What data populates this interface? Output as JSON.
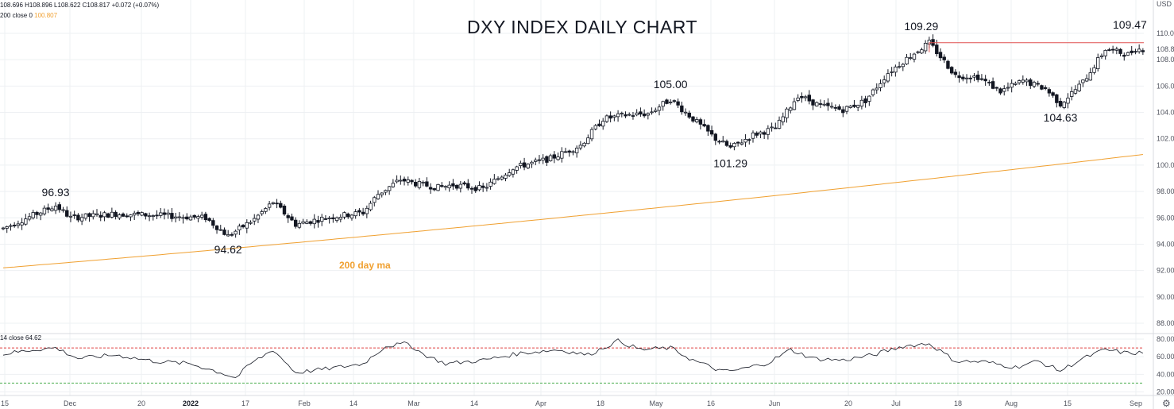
{
  "legend": {
    "ohlc": "108.696 H108.896 L108.622 C108.817 +0.072 (+0.07%)",
    "ma_prefix": "200 close 0",
    "ma_value": "100.807",
    "rsi_prefix": "14 close",
    "rsi_value": "64.62"
  },
  "axis": {
    "currency": "USD"
  },
  "icons": {
    "settings": "gear-icon"
  },
  "colors": {
    "ma": "#f0a030",
    "resistance": "#e05050",
    "rsi_line": "#131722",
    "rsi_upper": "#e04040",
    "rsi_lower": "#4caf50",
    "grid": "#eef0f3"
  },
  "chart_data": [
    {
      "type": "candlestick",
      "title": "DXY INDEX DAILY CHART",
      "ylim": [
        88,
        111
      ],
      "price_ticks": [
        "110.000",
        "108.000",
        "106.000",
        "104.000",
        "102.000",
        "100.000",
        "98.000",
        "96.000",
        "94.000",
        "92.000",
        "90.000",
        "88.000"
      ],
      "last_price_label": "108.8",
      "x_labels": [
        "15",
        "Dec",
        "20",
        "2022",
        "17",
        "Feb",
        "14",
        "Mar",
        "14",
        "Apr",
        "18",
        "May",
        "16",
        "Jun",
        "20",
        "Jul",
        "18",
        "Aug",
        "15",
        "Sep"
      ],
      "anchors": [
        {
          "t": 0,
          "v": 95.2
        },
        {
          "t": 14,
          "v": 96.93
        },
        {
          "t": 18,
          "v": 96.0
        },
        {
          "t": 30,
          "v": 96.3
        },
        {
          "t": 40,
          "v": 96.2
        },
        {
          "t": 54,
          "v": 96.0
        },
        {
          "t": 60,
          "v": 94.62
        },
        {
          "t": 67,
          "v": 95.9
        },
        {
          "t": 72,
          "v": 97.2
        },
        {
          "t": 78,
          "v": 95.5
        },
        {
          "t": 86,
          "v": 96.0
        },
        {
          "t": 96,
          "v": 96.4
        },
        {
          "t": 100,
          "v": 97.8
        },
        {
          "t": 106,
          "v": 98.9
        },
        {
          "t": 110,
          "v": 98.6
        },
        {
          "t": 116,
          "v": 98.3
        },
        {
          "t": 120,
          "v": 98.5
        },
        {
          "t": 128,
          "v": 98.2
        },
        {
          "t": 136,
          "v": 99.8
        },
        {
          "t": 146,
          "v": 100.5
        },
        {
          "t": 154,
          "v": 101.5
        },
        {
          "t": 160,
          "v": 103.5
        },
        {
          "t": 166,
          "v": 103.8
        },
        {
          "t": 172,
          "v": 103.9
        },
        {
          "t": 178,
          "v": 105.0
        },
        {
          "t": 184,
          "v": 103.5
        },
        {
          "t": 190,
          "v": 102.0
        },
        {
          "t": 194,
          "v": 101.29
        },
        {
          "t": 200,
          "v": 102.3
        },
        {
          "t": 206,
          "v": 102.8
        },
        {
          "t": 212,
          "v": 105.3
        },
        {
          "t": 218,
          "v": 104.5
        },
        {
          "t": 224,
          "v": 104.2
        },
        {
          "t": 230,
          "v": 104.9
        },
        {
          "t": 236,
          "v": 107.0
        },
        {
          "t": 242,
          "v": 108.3
        },
        {
          "t": 247,
          "v": 109.29
        },
        {
          "t": 254,
          "v": 106.8
        },
        {
          "t": 260,
          "v": 106.7
        },
        {
          "t": 266,
          "v": 105.6
        },
        {
          "t": 272,
          "v": 106.4
        },
        {
          "t": 278,
          "v": 105.8
        },
        {
          "t": 282,
          "v": 104.63
        },
        {
          "t": 288,
          "v": 106.3
        },
        {
          "t": 294,
          "v": 108.8
        },
        {
          "t": 300,
          "v": 108.4
        },
        {
          "t": 302,
          "v": 108.8
        },
        {
          "t": 304,
          "v": 108.8
        }
      ],
      "annotations": [
        {
          "text": "96.93",
          "t": 14,
          "v": 96.93
        },
        {
          "text": "94.62",
          "t": 60,
          "v": 94.62
        },
        {
          "text": "105.00",
          "t": 178,
          "v": 105.0
        },
        {
          "text": "101.29",
          "t": 194,
          "v": 101.29
        },
        {
          "text": "109.29",
          "t": 247,
          "v": 109.29
        },
        {
          "text": "104.63",
          "t": 282,
          "v": 104.63
        },
        {
          "text": "109.47",
          "t": 302,
          "v": 109.47
        }
      ],
      "resistance": {
        "value": 109.29,
        "from_t": 247,
        "to_t": 304
      },
      "moving_average": {
        "label": "200 day ma",
        "start": 92.2,
        "end": 100.807
      }
    },
    {
      "type": "line",
      "ylim": [
        20,
        85
      ],
      "rsi_ticks": [
        "80.00",
        "60.00",
        "40.00",
        "20.00"
      ],
      "overbought": 70,
      "oversold": 30,
      "anchors": [
        {
          "t": 0,
          "v": 63
        },
        {
          "t": 8,
          "v": 68
        },
        {
          "t": 14,
          "v": 70
        },
        {
          "t": 20,
          "v": 58
        },
        {
          "t": 30,
          "v": 62
        },
        {
          "t": 40,
          "v": 55
        },
        {
          "t": 50,
          "v": 52
        },
        {
          "t": 58,
          "v": 42
        },
        {
          "t": 62,
          "v": 36
        },
        {
          "t": 66,
          "v": 52
        },
        {
          "t": 72,
          "v": 68
        },
        {
          "t": 78,
          "v": 42
        },
        {
          "t": 86,
          "v": 46
        },
        {
          "t": 96,
          "v": 52
        },
        {
          "t": 102,
          "v": 72
        },
        {
          "t": 108,
          "v": 75
        },
        {
          "t": 112,
          "v": 63
        },
        {
          "t": 118,
          "v": 52
        },
        {
          "t": 128,
          "v": 56
        },
        {
          "t": 138,
          "v": 64
        },
        {
          "t": 148,
          "v": 68
        },
        {
          "t": 156,
          "v": 62
        },
        {
          "t": 164,
          "v": 78
        },
        {
          "t": 170,
          "v": 68
        },
        {
          "t": 178,
          "v": 70
        },
        {
          "t": 184,
          "v": 56
        },
        {
          "t": 192,
          "v": 43
        },
        {
          "t": 196,
          "v": 45
        },
        {
          "t": 204,
          "v": 53
        },
        {
          "t": 210,
          "v": 68
        },
        {
          "t": 216,
          "v": 58
        },
        {
          "t": 224,
          "v": 56
        },
        {
          "t": 232,
          "v": 62
        },
        {
          "t": 240,
          "v": 72
        },
        {
          "t": 247,
          "v": 75
        },
        {
          "t": 254,
          "v": 55
        },
        {
          "t": 262,
          "v": 54
        },
        {
          "t": 270,
          "v": 48
        },
        {
          "t": 276,
          "v": 55
        },
        {
          "t": 282,
          "v": 44
        },
        {
          "t": 288,
          "v": 58
        },
        {
          "t": 294,
          "v": 68
        },
        {
          "t": 300,
          "v": 64
        },
        {
          "t": 304,
          "v": 64.62
        }
      ]
    }
  ]
}
